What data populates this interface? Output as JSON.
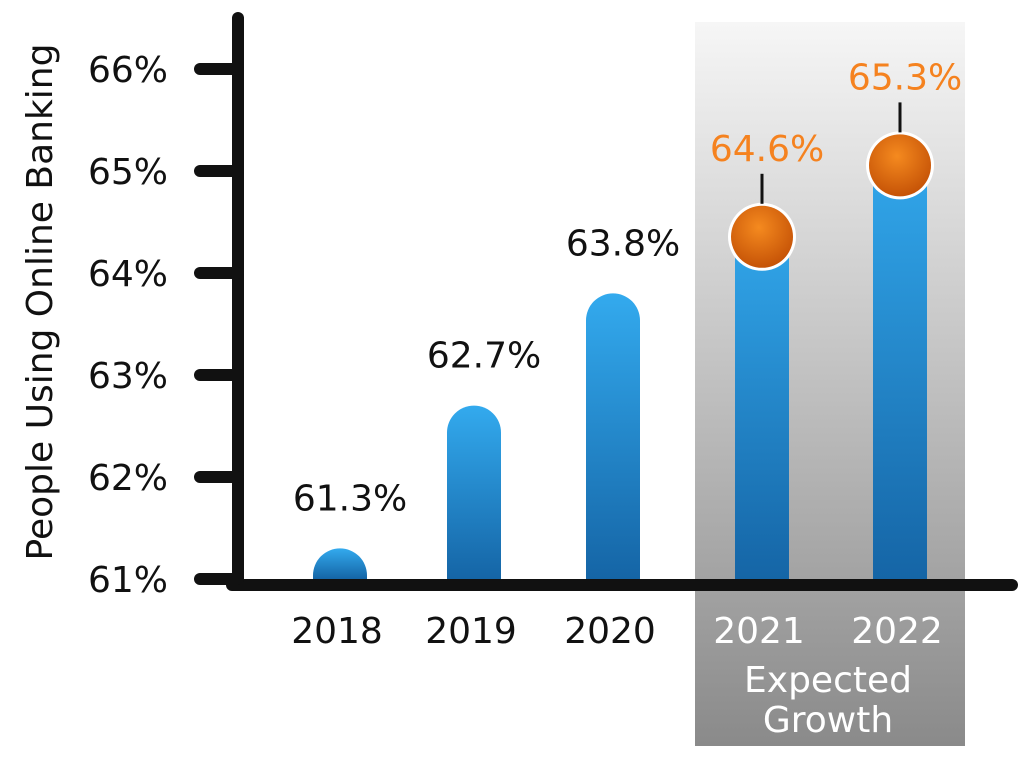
{
  "chart_data": {
    "type": "bar",
    "ylabel": "People Using Online Banking",
    "ylim": [
      61,
      66
    ],
    "y_ticks": [
      "61%",
      "62%",
      "63%",
      "64%",
      "65%",
      "66%"
    ],
    "y_tick_values": [
      61,
      62,
      63,
      64,
      65,
      66
    ],
    "categories": [
      "2018",
      "2019",
      "2020",
      "2021",
      "2022"
    ],
    "values": [
      61.3,
      62.7,
      63.8,
      64.6,
      65.3
    ],
    "value_labels": [
      "61.3%",
      "62.7%",
      "63.8%",
      "64.6%",
      "65.3%"
    ],
    "projected": [
      false,
      false,
      false,
      true,
      true
    ],
    "projection_label_line1": "Expected",
    "projection_label_line2": "Growth",
    "colors": {
      "bar_top": "#33aaee",
      "bar_bottom": "#1565a6",
      "marker_top": "#f58a1f",
      "marker_bottom": "#c24f05",
      "projected_label": "#f5821f",
      "axis": "#111111",
      "shade_top": "#f6f6f6",
      "shade_bottom": "#8a8a8a",
      "projected_category": "#ffffff"
    }
  }
}
